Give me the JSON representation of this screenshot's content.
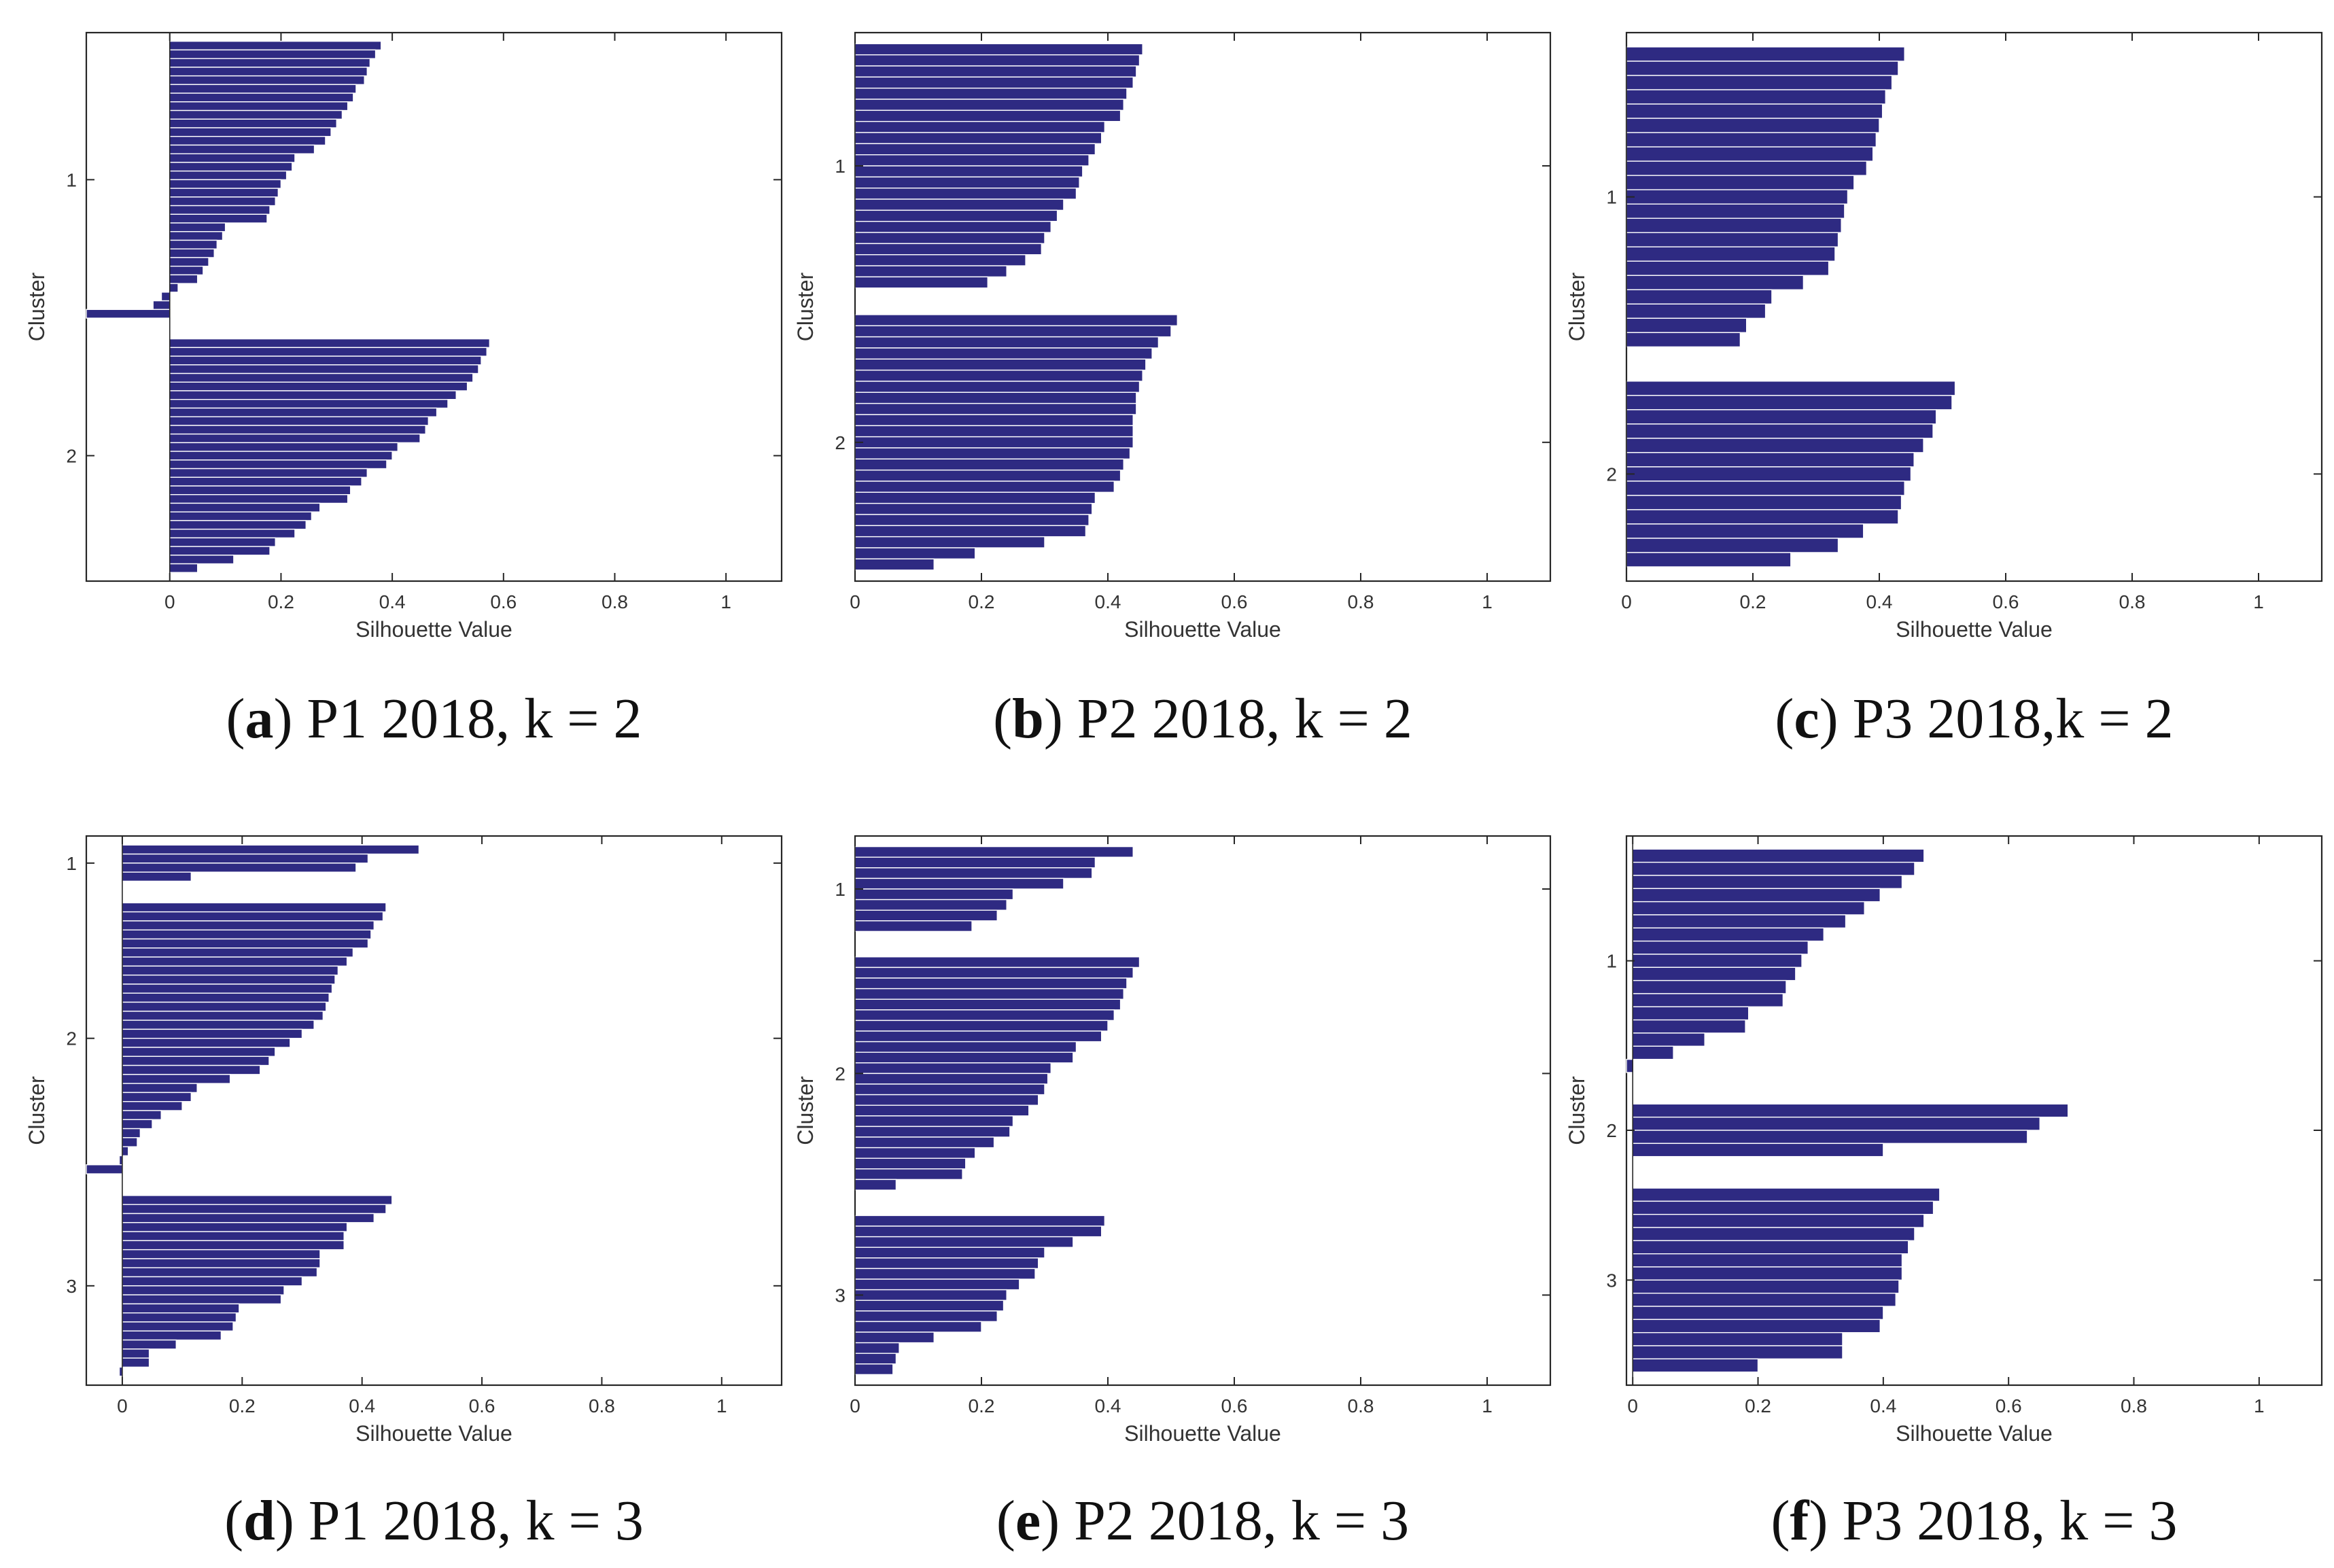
{
  "figure": {
    "bar_color": "#2e2a82",
    "bar_edge_color": "#ffffff",
    "axis_color": "#262626",
    "x_ticks": [
      0,
      0.2,
      0.4,
      0.6,
      0.8,
      1
    ]
  },
  "chart_data": [
    {
      "type": "bar",
      "orientation": "horizontal",
      "caption_letter": "a",
      "caption_text": "P1 2018, k = 2",
      "xlabel": "Silhouette Value",
      "ylabel": "Cluster",
      "xlim": [
        -0.15,
        1.1
      ],
      "clusters": [
        {
          "label": "1",
          "values": [
            0.38,
            0.37,
            0.36,
            0.355,
            0.35,
            0.335,
            0.33,
            0.32,
            0.31,
            0.3,
            0.29,
            0.28,
            0.26,
            0.225,
            0.22,
            0.21,
            0.2,
            0.195,
            0.19,
            0.18,
            0.175,
            0.1,
            0.095,
            0.085,
            0.08,
            0.07,
            0.06,
            0.05,
            0.015,
            -0.015,
            -0.03,
            -0.15
          ]
        },
        {
          "label": "2",
          "values": [
            0.575,
            0.57,
            0.56,
            0.555,
            0.545,
            0.535,
            0.515,
            0.5,
            0.48,
            0.465,
            0.46,
            0.45,
            0.41,
            0.4,
            0.39,
            0.355,
            0.345,
            0.325,
            0.32,
            0.27,
            0.255,
            0.245,
            0.225,
            0.19,
            0.18,
            0.115,
            0.05
          ]
        }
      ]
    },
    {
      "type": "bar",
      "orientation": "horizontal",
      "caption_letter": "b",
      "caption_text": "P2 2018, k = 2",
      "xlabel": "Silhouette Value",
      "ylabel": "Cluster",
      "xlim": [
        0,
        1.1
      ],
      "clusters": [
        {
          "label": "1",
          "values": [
            0.455,
            0.45,
            0.445,
            0.44,
            0.43,
            0.425,
            0.42,
            0.395,
            0.39,
            0.38,
            0.37,
            0.36,
            0.355,
            0.35,
            0.33,
            0.32,
            0.31,
            0.3,
            0.295,
            0.27,
            0.24,
            0.21
          ]
        },
        {
          "label": "2",
          "values": [
            0.51,
            0.5,
            0.48,
            0.47,
            0.46,
            0.455,
            0.45,
            0.445,
            0.445,
            0.44,
            0.44,
            0.44,
            0.435,
            0.425,
            0.42,
            0.41,
            0.38,
            0.375,
            0.37,
            0.365,
            0.3,
            0.19,
            0.125
          ]
        }
      ]
    },
    {
      "type": "bar",
      "orientation": "horizontal",
      "caption_letter": "c",
      "caption_text": "P3 2018,k = 2",
      "xlabel": "Silhouette Value",
      "ylabel": "Cluster",
      "xlim": [
        0,
        1.1
      ],
      "clusters": [
        {
          "label": "1",
          "values": [
            0.44,
            0.43,
            0.42,
            0.41,
            0.405,
            0.4,
            0.395,
            0.39,
            0.38,
            0.36,
            0.35,
            0.345,
            0.34,
            0.335,
            0.33,
            0.32,
            0.28,
            0.23,
            0.22,
            0.19,
            0.18
          ]
        },
        {
          "label": "2",
          "values": [
            0.52,
            0.515,
            0.49,
            0.485,
            0.47,
            0.455,
            0.45,
            0.44,
            0.435,
            0.43,
            0.375,
            0.335,
            0.26
          ]
        }
      ]
    },
    {
      "type": "bar",
      "orientation": "horizontal",
      "caption_letter": "d",
      "caption_text": "P1 2018, k = 3",
      "xlabel": "Silhouette Value",
      "ylabel": "Cluster",
      "xlim": [
        -0.06,
        1.1
      ],
      "clusters": [
        {
          "label": "1",
          "values": [
            0.495,
            0.41,
            0.39,
            0.115
          ]
        },
        {
          "label": "2",
          "values": [
            0.44,
            0.435,
            0.42,
            0.415,
            0.41,
            0.385,
            0.375,
            0.36,
            0.355,
            0.35,
            0.345,
            0.34,
            0.335,
            0.32,
            0.3,
            0.28,
            0.255,
            0.245,
            0.23,
            0.18,
            0.125,
            0.115,
            0.1,
            0.065,
            0.05,
            0.03,
            0.025,
            0.01,
            -0.005,
            -0.06
          ]
        },
        {
          "label": "3",
          "values": [
            0.45,
            0.44,
            0.42,
            0.375,
            0.37,
            0.37,
            0.33,
            0.33,
            0.325,
            0.3,
            0.27,
            0.265,
            0.195,
            0.19,
            0.185,
            0.165,
            0.09,
            0.045,
            0.045,
            -0.005
          ]
        }
      ]
    },
    {
      "type": "bar",
      "orientation": "horizontal",
      "caption_letter": "e",
      "caption_text": "P2 2018, k = 3",
      "xlabel": "Silhouette Value",
      "ylabel": "Cluster",
      "xlim": [
        0,
        1.1
      ],
      "clusters": [
        {
          "label": "1",
          "values": [
            0.44,
            0.38,
            0.375,
            0.33,
            0.25,
            0.24,
            0.225,
            0.185
          ]
        },
        {
          "label": "2",
          "values": [
            0.45,
            0.44,
            0.43,
            0.425,
            0.42,
            0.41,
            0.4,
            0.39,
            0.35,
            0.345,
            0.31,
            0.305,
            0.3,
            0.29,
            0.275,
            0.25,
            0.245,
            0.22,
            0.19,
            0.175,
            0.17,
            0.065
          ]
        },
        {
          "label": "3",
          "values": [
            0.395,
            0.39,
            0.345,
            0.3,
            0.29,
            0.285,
            0.26,
            0.24,
            0.235,
            0.225,
            0.2,
            0.125,
            0.07,
            0.065,
            0.06
          ]
        }
      ]
    },
    {
      "type": "bar",
      "orientation": "horizontal",
      "caption_letter": "f",
      "caption_text": "P3 2018, k = 3",
      "xlabel": "Silhouette Value",
      "ylabel": "Cluster",
      "xlim": [
        -0.01,
        1.1
      ],
      "clusters": [
        {
          "label": "1",
          "values": [
            0.465,
            0.45,
            0.43,
            0.395,
            0.37,
            0.34,
            0.305,
            0.28,
            0.27,
            0.26,
            0.245,
            0.24,
            0.185,
            0.18,
            0.115,
            0.065,
            -0.01
          ]
        },
        {
          "label": "2",
          "values": [
            0.695,
            0.65,
            0.63,
            0.4
          ]
        },
        {
          "label": "3",
          "values": [
            0.49,
            0.48,
            0.465,
            0.45,
            0.44,
            0.43,
            0.43,
            0.425,
            0.42,
            0.4,
            0.395,
            0.335,
            0.335,
            0.2
          ]
        }
      ]
    }
  ]
}
